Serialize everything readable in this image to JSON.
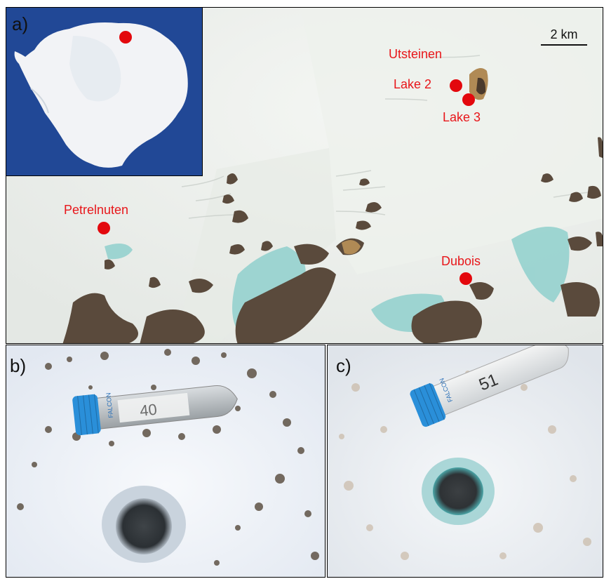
{
  "panels": {
    "a": {
      "label": "a)",
      "scale_bar": "2 km",
      "sites": [
        {
          "id": "utsteinen",
          "name": "Utsteinen"
        },
        {
          "id": "lake2",
          "name": "Lake 2"
        },
        {
          "id": "lake3",
          "name": "Lake 3"
        },
        {
          "id": "petrelnuten",
          "name": "Petrelnuten"
        },
        {
          "id": "dubois",
          "name": "Dubois"
        }
      ]
    },
    "b": {
      "label": "b)",
      "tube_brand": "FALCON",
      "tube_label": "40"
    },
    "c": {
      "label": "c)",
      "tube_brand": "FALCON",
      "tube_label": "51"
    }
  },
  "colors": {
    "site_marker": "#e3080d",
    "site_text": "#e8161a",
    "ice": "#eef1ee",
    "blue_ice": "#8fd0cd",
    "rock": "#5a4a3c",
    "ocean": "#1d3f8c",
    "tube_cap": "#2a8fd9"
  }
}
